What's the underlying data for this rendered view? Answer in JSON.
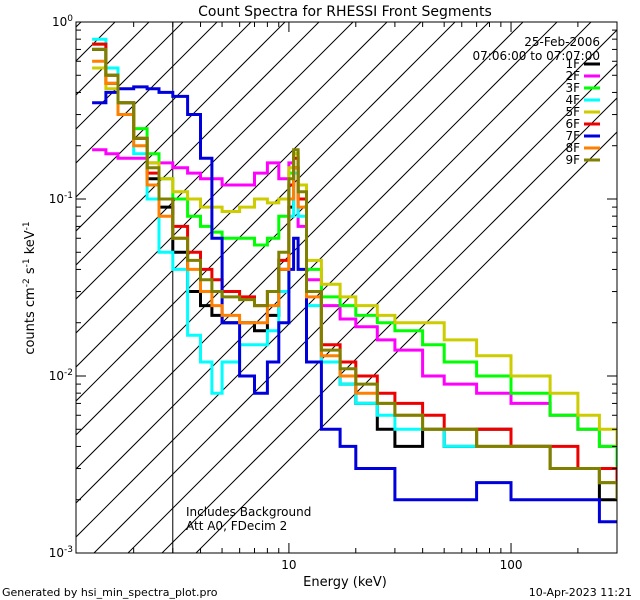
{
  "footer": {
    "left": "Generated by hsi_min_spectra_plot.pro",
    "right": "10-Apr-2023 11:21"
  },
  "chart_data": {
    "type": "line",
    "title": "Count Spectra for RHESSI Front Segments",
    "xlabel": "Energy (keV)",
    "ylabel_base": "counts cm",
    "ylabel_parts": [
      "-2",
      " s",
      "-1",
      " keV",
      "-1"
    ],
    "xscale": "log",
    "yscale": "log",
    "xlim": [
      1.1,
      300
    ],
    "ylim": [
      0.001,
      1
    ],
    "x_ticks": [
      {
        "value": 10,
        "label": "10"
      },
      {
        "value": 100,
        "label": "100"
      }
    ],
    "y_ticks": [
      {
        "value": 1,
        "mant": "10",
        "exp": "0"
      },
      {
        "value": 0.1,
        "mant": "10",
        "exp": "-1"
      },
      {
        "value": 0.01,
        "mant": "10",
        "exp": "-2"
      },
      {
        "value": 0.001,
        "mant": "10",
        "exp": "-3"
      }
    ],
    "date": "25-Feb-2006",
    "time_range": "07:06:00 to 07:07:00",
    "annotation_lines": [
      "Includes Background",
      "Att A0, FDecim 2"
    ],
    "hatch_below_kev": 3,
    "series": [
      {
        "name": "1F",
        "color": "#000000",
        "x": [
          1.3,
          1.5,
          1.7,
          2.0,
          2.3,
          2.6,
          3.0,
          3.5,
          4.0,
          4.5,
          5.0,
          6.0,
          7.0,
          8.0,
          9.0,
          10.0,
          10.5,
          11.0,
          12.0,
          14.0,
          17.0,
          20.0,
          25.0,
          30.0,
          40.0,
          50.0,
          70.0,
          100.0,
          150.0,
          200.0,
          250.0,
          300.0
        ],
        "y": [
          0.7,
          0.45,
          0.3,
          0.22,
          0.13,
          0.09,
          0.05,
          0.03,
          0.025,
          0.022,
          0.02,
          0.02,
          0.018,
          0.022,
          0.04,
          0.09,
          0.15,
          0.1,
          0.03,
          0.012,
          0.009,
          0.007,
          0.005,
          0.004,
          0.005,
          0.004,
          0.005,
          0.004,
          0.003,
          0.003,
          0.002,
          0.002
        ]
      },
      {
        "name": "2F",
        "color": "#ff00ff",
        "x": [
          1.3,
          1.5,
          1.7,
          2.0,
          2.3,
          2.6,
          3.0,
          3.5,
          4.0,
          4.5,
          5.0,
          6.0,
          7.0,
          8.0,
          9.0,
          10.0,
          10.5,
          11.0,
          12.0,
          14.0,
          17.0,
          20.0,
          25.0,
          30.0,
          40.0,
          50.0,
          70.0,
          100.0,
          150.0,
          200.0,
          250.0,
          300.0
        ],
        "y": [
          0.19,
          0.18,
          0.17,
          0.17,
          0.16,
          0.16,
          0.15,
          0.14,
          0.13,
          0.13,
          0.12,
          0.12,
          0.14,
          0.16,
          0.13,
          0.16,
          0.15,
          0.07,
          0.035,
          0.025,
          0.021,
          0.019,
          0.016,
          0.014,
          0.01,
          0.009,
          0.008,
          0.007,
          0.006,
          0.005,
          0.004,
          0.003
        ]
      },
      {
        "name": "3F",
        "color": "#00ff00",
        "x": [
          1.3,
          1.5,
          1.7,
          2.0,
          2.3,
          2.6,
          3.0,
          3.5,
          4.0,
          4.5,
          5.0,
          6.0,
          7.0,
          8.0,
          9.0,
          10.0,
          10.5,
          11.0,
          12.0,
          14.0,
          17.0,
          20.0,
          25.0,
          30.0,
          40.0,
          50.0,
          70.0,
          100.0,
          150.0,
          200.0,
          250.0,
          300.0
        ],
        "y": [
          0.75,
          0.5,
          0.35,
          0.25,
          0.18,
          0.13,
          0.1,
          0.08,
          0.07,
          0.065,
          0.06,
          0.06,
          0.055,
          0.06,
          0.08,
          0.14,
          0.18,
          0.1,
          0.04,
          0.028,
          0.025,
          0.022,
          0.02,
          0.018,
          0.015,
          0.012,
          0.01,
          0.008,
          0.006,
          0.005,
          0.004,
          0.003
        ]
      },
      {
        "name": "4F",
        "color": "#00ffff",
        "x": [
          1.3,
          1.5,
          1.7,
          2.0,
          2.3,
          2.6,
          3.0,
          3.5,
          4.0,
          4.5,
          5.0,
          6.0,
          7.0,
          8.0,
          9.0,
          10.0,
          10.5,
          11.0,
          12.0,
          14.0,
          17.0,
          20.0,
          25.0,
          30.0,
          40.0,
          50.0,
          70.0,
          100.0,
          150.0,
          200.0,
          250.0,
          300.0
        ],
        "y": [
          0.8,
          0.55,
          0.35,
          0.18,
          0.1,
          0.05,
          0.04,
          0.017,
          0.012,
          0.008,
          0.012,
          0.015,
          0.015,
          0.018,
          0.03,
          0.08,
          0.14,
          0.08,
          0.025,
          0.012,
          0.009,
          0.007,
          0.006,
          0.005,
          0.005,
          0.004,
          0.004,
          0.004,
          0.003,
          0.003,
          0.0025,
          0.002
        ]
      },
      {
        "name": "5F",
        "color": "#cccc00",
        "x": [
          1.3,
          1.5,
          1.7,
          2.0,
          2.3,
          2.6,
          3.0,
          3.5,
          4.0,
          4.5,
          5.0,
          6.0,
          7.0,
          8.0,
          9.0,
          10.0,
          10.5,
          11.0,
          12.0,
          14.0,
          17.0,
          20.0,
          25.0,
          30.0,
          40.0,
          50.0,
          70.0,
          100.0,
          150.0,
          200.0,
          250.0,
          300.0
        ],
        "y": [
          0.55,
          0.42,
          0.3,
          0.22,
          0.16,
          0.13,
          0.11,
          0.1,
          0.09,
          0.09,
          0.085,
          0.09,
          0.1,
          0.095,
          0.1,
          0.15,
          0.18,
          0.12,
          0.045,
          0.033,
          0.028,
          0.025,
          0.022,
          0.02,
          0.02,
          0.016,
          0.013,
          0.01,
          0.008,
          0.006,
          0.005,
          0.004
        ]
      },
      {
        "name": "6F",
        "color": "#ee0000",
        "x": [
          1.3,
          1.5,
          1.7,
          2.0,
          2.3,
          2.6,
          3.0,
          3.5,
          4.0,
          4.5,
          5.0,
          6.0,
          7.0,
          8.0,
          9.0,
          10.0,
          10.5,
          11.0,
          12.0,
          14.0,
          17.0,
          20.0,
          25.0,
          30.0,
          40.0,
          50.0,
          70.0,
          100.0,
          150.0,
          200.0,
          250.0,
          300.0
        ],
        "y": [
          0.75,
          0.5,
          0.35,
          0.22,
          0.14,
          0.1,
          0.07,
          0.05,
          0.04,
          0.035,
          0.03,
          0.028,
          0.025,
          0.03,
          0.045,
          0.12,
          0.17,
          0.1,
          0.03,
          0.015,
          0.012,
          0.01,
          0.008,
          0.007,
          0.006,
          0.005,
          0.005,
          0.004,
          0.004,
          0.003,
          0.003,
          0.002
        ]
      },
      {
        "name": "7F",
        "color": "#0000dd",
        "x": [
          1.3,
          1.5,
          1.7,
          2.0,
          2.3,
          2.6,
          3.0,
          3.5,
          4.0,
          4.5,
          5.0,
          6.0,
          7.0,
          8.0,
          9.0,
          10.0,
          10.5,
          11.0,
          12.0,
          14.0,
          17.0,
          20.0,
          25.0,
          30.0,
          40.0,
          50.0,
          70.0,
          100.0,
          150.0,
          200.0,
          250.0,
          300.0
        ],
        "y": [
          0.35,
          0.4,
          0.42,
          0.43,
          0.42,
          0.4,
          0.38,
          0.3,
          0.17,
          0.06,
          0.02,
          0.01,
          0.008,
          0.012,
          0.02,
          0.04,
          0.06,
          0.04,
          0.012,
          0.005,
          0.004,
          0.003,
          0.003,
          0.002,
          0.002,
          0.002,
          0.0025,
          0.002,
          0.002,
          0.002,
          0.0015,
          0.0015
        ]
      },
      {
        "name": "8F",
        "color": "#ff8000",
        "x": [
          1.3,
          1.5,
          1.7,
          2.0,
          2.3,
          2.6,
          3.0,
          3.5,
          4.0,
          4.5,
          5.0,
          6.0,
          7.0,
          8.0,
          9.0,
          10.0,
          10.5,
          11.0,
          12.0,
          14.0,
          17.0,
          20.0,
          25.0,
          30.0,
          40.0,
          50.0,
          70.0,
          100.0,
          150.0,
          200.0,
          250.0,
          300.0
        ],
        "y": [
          0.6,
          0.45,
          0.3,
          0.2,
          0.12,
          0.08,
          0.06,
          0.04,
          0.03,
          0.025,
          0.022,
          0.02,
          0.02,
          0.025,
          0.04,
          0.1,
          0.15,
          0.09,
          0.028,
          0.013,
          0.01,
          0.008,
          0.007,
          0.006,
          0.005,
          0.005,
          0.004,
          0.004,
          0.003,
          0.003,
          0.0025,
          0.002
        ]
      },
      {
        "name": "9F",
        "color": "#808000",
        "x": [
          1.3,
          1.5,
          1.7,
          2.0,
          2.3,
          2.6,
          3.0,
          3.5,
          4.0,
          4.5,
          5.0,
          6.0,
          7.0,
          8.0,
          9.0,
          10.0,
          10.5,
          11.0,
          12.0,
          14.0,
          17.0,
          20.0,
          25.0,
          30.0,
          40.0,
          50.0,
          70.0,
          100.0,
          150.0,
          200.0,
          250.0,
          300.0
        ],
        "y": [
          0.7,
          0.5,
          0.35,
          0.22,
          0.15,
          0.1,
          0.06,
          0.045,
          0.035,
          0.03,
          0.028,
          0.027,
          0.025,
          0.03,
          0.05,
          0.13,
          0.19,
          0.11,
          0.03,
          0.014,
          0.011,
          0.009,
          0.007,
          0.006,
          0.005,
          0.005,
          0.004,
          0.004,
          0.003,
          0.003,
          0.0025,
          0.002
        ]
      }
    ]
  }
}
